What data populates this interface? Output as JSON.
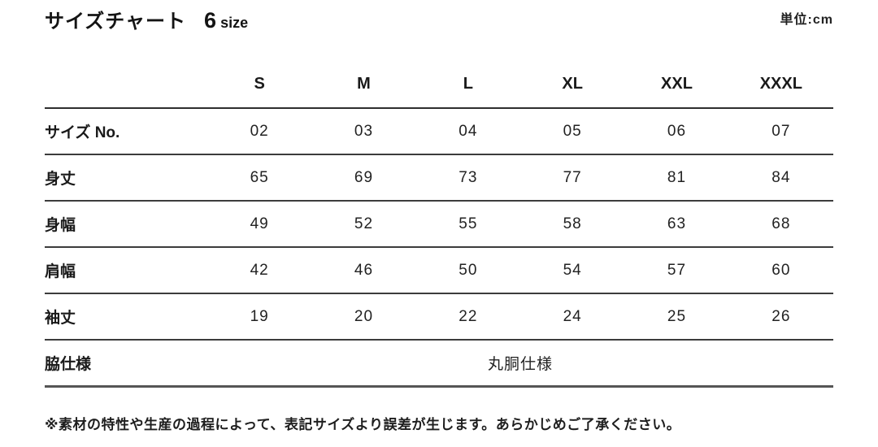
{
  "header": {
    "title": "サイズチャート",
    "size_count": "6",
    "size_word": "size",
    "unit": "単位:cm"
  },
  "chart_data": {
    "type": "table",
    "columns": [
      "S",
      "M",
      "L",
      "XL",
      "XXL",
      "XXXL"
    ],
    "rows": [
      {
        "label": "サイズ No.",
        "values": [
          "02",
          "03",
          "04",
          "05",
          "06",
          "07"
        ]
      },
      {
        "label": "身丈",
        "values": [
          "65",
          "69",
          "73",
          "77",
          "81",
          "84"
        ]
      },
      {
        "label": "身幅",
        "values": [
          "49",
          "52",
          "55",
          "58",
          "63",
          "68"
        ]
      },
      {
        "label": "肩幅",
        "values": [
          "42",
          "46",
          "50",
          "54",
          "57",
          "60"
        ]
      },
      {
        "label": "袖丈",
        "values": [
          "19",
          "20",
          "22",
          "24",
          "25",
          "26"
        ]
      }
    ],
    "merged_row": {
      "label": "脇仕様",
      "value": "丸胴仕様"
    }
  },
  "footnote": "※素材の特性や生産の過程によって、表記サイズより誤差が生じます。あらかじめご了承ください。"
}
